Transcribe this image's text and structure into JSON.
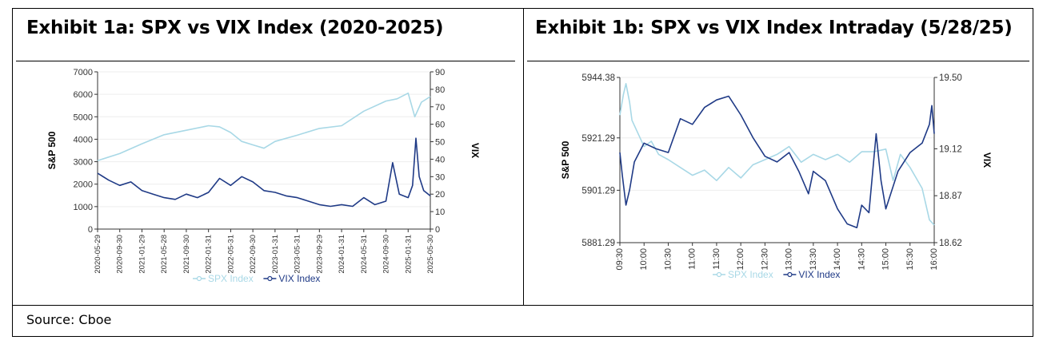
{
  "source": "Source: Cboe",
  "colors": {
    "spx": "#a8d8e6",
    "vix": "#1f3a86",
    "axis": "#333333",
    "text": "#333333"
  },
  "chart_data": [
    {
      "type": "line",
      "title": "Exhibit 1a: SPX vs VIX Index (2020-2025)",
      "ylabel": "S&P 500",
      "y2label": "VIX",
      "ylim": [
        0,
        7000
      ],
      "y2lim": [
        0,
        90
      ],
      "yticks": [
        "0",
        "1000",
        "2000",
        "3000",
        "4000",
        "5000",
        "6000",
        "7000"
      ],
      "y2ticks": [
        "0",
        "10",
        "20",
        "30",
        "40",
        "50",
        "60",
        "70",
        "80",
        "90"
      ],
      "xticks": [
        "2020-05-29",
        "2020-09-30",
        "2021-01-29",
        "2021-05-28",
        "2021-09-30",
        "2022-01-31",
        "2022-05-31",
        "2022-09-30",
        "2023-01-31",
        "2023-05-31",
        "2023-09-29",
        "2024-01-31",
        "2024-05-31",
        "2024-09-30",
        "2025-01-31",
        "2025-05-30"
      ],
      "grid": true,
      "legend": "bottom",
      "series": [
        {
          "name": "SPX Index",
          "axis": "left",
          "x": [
            0,
            1,
            2,
            3,
            4,
            5,
            5.5,
            6,
            6.5,
            7,
            7.5,
            8,
            9,
            10,
            11,
            12,
            13,
            13.5,
            14,
            14.3,
            14.6,
            15
          ],
          "values": [
            3050,
            3360,
            3800,
            4200,
            4400,
            4600,
            4550,
            4300,
            3900,
            3750,
            3600,
            3900,
            4180,
            4480,
            4600,
            5250,
            5700,
            5800,
            6050,
            5000,
            5650,
            5900
          ]
        },
        {
          "name": "VIX Index",
          "axis": "right",
          "x": [
            0,
            0.5,
            1,
            1.5,
            2,
            2.5,
            3,
            3.5,
            4,
            4.5,
            5,
            5.5,
            6,
            6.5,
            7,
            7.5,
            8,
            8.5,
            9,
            9.5,
            10,
            10.5,
            11,
            11.5,
            12,
            12.5,
            13,
            13.3,
            13.6,
            14,
            14.2,
            14.35,
            14.5,
            14.7,
            15
          ],
          "values": [
            32,
            28,
            25,
            27,
            22,
            20,
            18,
            17,
            20,
            18,
            21,
            29,
            25,
            30,
            27,
            22,
            21,
            19,
            18,
            16,
            14,
            13,
            14,
            13,
            18,
            14,
            16,
            38,
            20,
            18,
            25,
            52,
            30,
            22,
            19
          ]
        }
      ]
    },
    {
      "type": "line",
      "title": "Exhibit 1b: SPX vs VIX Index Intraday (5/28/25)",
      "ylabel": "S&P 500",
      "y2label": "VIX",
      "ylim": [
        5881.29,
        5944.38
      ],
      "y2lim": [
        18.62,
        19.5
      ],
      "yticks": [
        "5881.29",
        "5901.29",
        "5921.29",
        "5944.38"
      ],
      "y2ticks": [
        "18.62",
        "18.87",
        "19.12",
        "19.50"
      ],
      "xticks": [
        "09:30",
        "10:00",
        "10:30",
        "11:00",
        "11:30",
        "12:00",
        "12:30",
        "13:00",
        "13:30",
        "14:00",
        "14:30",
        "15:00",
        "15:30",
        "16:00"
      ],
      "grid": true,
      "legend": "bottom",
      "series": [
        {
          "name": "SPX Index",
          "axis": "left",
          "x": [
            0,
            0.15,
            0.25,
            0.4,
            0.5,
            0.8,
            1,
            1.3,
            1.6,
            2,
            2.5,
            3,
            3.5,
            4,
            4.5,
            5,
            5.5,
            6,
            6.5,
            7,
            7.5,
            8,
            8.5,
            9,
            9.5,
            10,
            10.5,
            11,
            11.3,
            11.6,
            12,
            12.5,
            12.8,
            13
          ],
          "values": [
            5930,
            5938,
            5942,
            5935,
            5928,
            5922,
            5918,
            5920,
            5915,
            5913,
            5910,
            5907,
            5909,
            5905,
            5910,
            5906,
            5911,
            5913,
            5915,
            5918,
            5912,
            5915,
            5913,
            5915,
            5912,
            5916,
            5916,
            5917,
            5905,
            5915,
            5910,
            5902,
            5890,
            5888
          ]
        },
        {
          "name": "VIX Index",
          "axis": "right",
          "x": [
            0,
            0.1,
            0.25,
            0.4,
            0.6,
            1,
            1.5,
            2,
            2.5,
            3,
            3.5,
            4,
            4.5,
            5,
            5.5,
            6,
            6.5,
            7,
            7.4,
            7.8,
            8,
            8.5,
            9,
            9.4,
            9.8,
            10,
            10.3,
            10.6,
            10.8,
            11,
            11.5,
            12,
            12.5,
            12.8,
            12.9,
            13
          ],
          "values": [
            19.1,
            18.98,
            18.82,
            18.9,
            19.05,
            19.15,
            19.12,
            19.1,
            19.28,
            19.25,
            19.34,
            19.38,
            19.4,
            19.3,
            19.18,
            19.08,
            19.05,
            19.1,
            19.0,
            18.88,
            19.0,
            18.95,
            18.8,
            18.72,
            18.7,
            18.82,
            18.78,
            19.2,
            18.95,
            18.8,
            19.0,
            19.1,
            19.15,
            19.25,
            19.35,
            19.2
          ]
        }
      ]
    }
  ]
}
